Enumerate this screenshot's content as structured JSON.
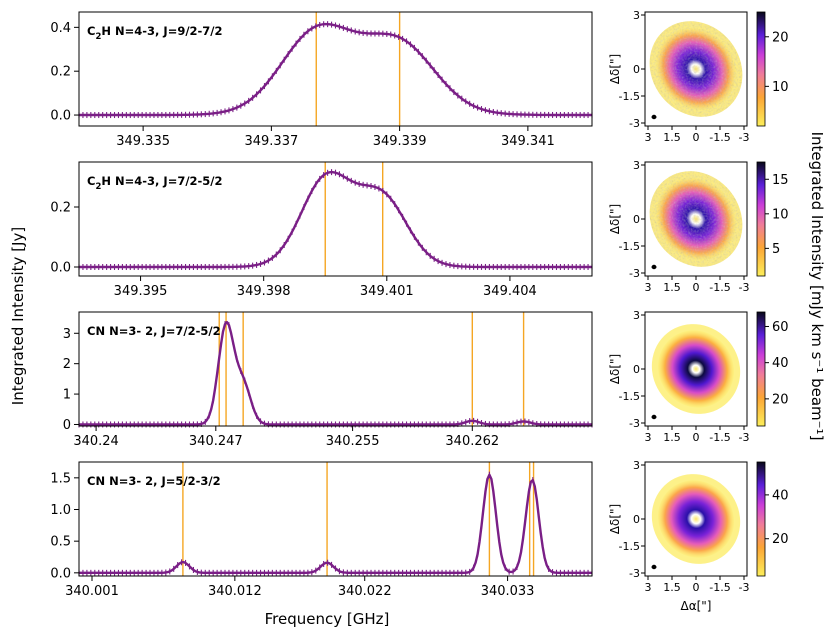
{
  "figure": {
    "shared_ylabel": "Integrated Intensity [Jy]",
    "shared_xlabel": "Frequency [GHz]",
    "colorbar_label": "Integrated Intensity [mJy km s⁻¹ beam⁻¹]",
    "map_xlabel": "Δα[\"]",
    "map_ylabel": "Δδ[\"]",
    "map_ticks": [
      "3",
      "1.5",
      "0",
      "-1.5",
      "-3"
    ],
    "colors": {
      "spectrum": "#7a1f86",
      "line_marker": "#f5a623",
      "colormap": "plasma_r"
    }
  },
  "chart_data": [
    {
      "type": "line",
      "title_parts": [
        "C",
        "2",
        "H N=4-3, J=9/2-7/2"
      ],
      "xlim": [
        349.334,
        349.342
      ],
      "ylim": [
        -0.05,
        0.47
      ],
      "xticks": [
        349.335,
        349.337,
        349.339,
        349.341
      ],
      "xtick_labels": [
        "349.335",
        "349.337",
        "349.339",
        "349.341"
      ],
      "yticks": [
        0.0,
        0.2,
        0.4
      ],
      "ytick_labels": [
        "0.0",
        "0.2",
        "0.4"
      ],
      "line_markers": [
        349.3377,
        349.339
      ],
      "peaks": [
        {
          "c": 349.3377,
          "a": 0.33,
          "w": 0.00055
        },
        {
          "c": 349.339,
          "a": 0.27,
          "w": 0.00055
        }
      ],
      "broad": {
        "c": 349.3384,
        "a": 0.08,
        "w": 0.0009
      }
    },
    {
      "type": "line",
      "title_parts": [
        "C",
        "2",
        "H N=4-3, J=7/2-5/2"
      ],
      "xlim": [
        349.3935,
        349.406
      ],
      "ylim": [
        -0.03,
        0.35
      ],
      "xticks": [
        349.395,
        349.398,
        349.401,
        349.404
      ],
      "xtick_labels": [
        "349.395",
        "349.398",
        "349.401",
        "349.404"
      ],
      "yticks": [
        0.0,
        0.2
      ],
      "ytick_labels": [
        "0.0",
        "0.2"
      ],
      "line_markers": [
        349.3995,
        349.4009
      ],
      "peaks": [
        {
          "c": 349.3995,
          "a": 0.26,
          "w": 0.0006
        },
        {
          "c": 349.4009,
          "a": 0.2,
          "w": 0.0006
        }
      ],
      "broad": {
        "c": 349.4002,
        "a": 0.05,
        "w": 0.0009
      }
    },
    {
      "type": "line",
      "title_parts": [
        "CN N=3- 2, J=7/2-5/2"
      ],
      "xlim": [
        340.239,
        340.269
      ],
      "ylim": [
        -0.05,
        3.7
      ],
      "xticks": [
        340.24,
        340.247,
        340.255,
        340.262
      ],
      "xtick_labels": [
        "340.24",
        "340.247",
        "340.255",
        "340.262"
      ],
      "yticks": [
        0,
        1,
        2,
        3
      ],
      "ytick_labels": [
        "0",
        "1",
        "2",
        "3"
      ],
      "line_markers": [
        340.2472,
        340.2476,
        340.2486,
        340.262,
        340.265
      ],
      "peaks": [
        {
          "c": 340.2476,
          "a": 3.25,
          "w": 0.00045
        },
        {
          "c": 340.2486,
          "a": 1.3,
          "w": 0.00045
        },
        {
          "c": 340.262,
          "a": 0.12,
          "w": 0.0004
        },
        {
          "c": 340.265,
          "a": 0.1,
          "w": 0.0004
        }
      ],
      "broad": null
    },
    {
      "type": "line",
      "title_parts": [
        "CN N=3- 2, J=5/2-3/2"
      ],
      "xlim": [
        340.0,
        340.0395
      ],
      "ylim": [
        -0.05,
        1.75
      ],
      "xticks": [
        340.001,
        340.012,
        340.022,
        340.033
      ],
      "xtick_labels": [
        "340.001",
        "340.012",
        "340.022",
        "340.033"
      ],
      "yticks": [
        0.0,
        0.5,
        1.0,
        1.5
      ],
      "ytick_labels": [
        "0.0",
        "0.5",
        "1.0",
        "1.5"
      ],
      "line_markers": [
        340.008,
        340.0191,
        340.0316,
        340.0347,
        340.035
      ],
      "peaks": [
        {
          "c": 340.008,
          "a": 0.17,
          "w": 0.0005
        },
        {
          "c": 340.0191,
          "a": 0.16,
          "w": 0.0005
        },
        {
          "c": 340.0316,
          "a": 1.55,
          "w": 0.0005
        },
        {
          "c": 340.0349,
          "a": 1.47,
          "w": 0.0005
        }
      ],
      "broad": null
    },
    {
      "type": "heatmap",
      "colorbar_ticks": [
        10,
        20
      ],
      "colorbar_range": [
        2,
        25
      ],
      "peak_value": 24,
      "morphology": "ring",
      "xlim": [
        3,
        -3
      ],
      "ylim": [
        -3,
        3
      ]
    },
    {
      "type": "heatmap",
      "colorbar_ticks": [
        5,
        10,
        15
      ],
      "colorbar_range": [
        1,
        17.5
      ],
      "peak_value": 17,
      "morphology": "ring",
      "xlim": [
        3,
        -3
      ],
      "ylim": [
        -3,
        3
      ]
    },
    {
      "type": "heatmap",
      "colorbar_ticks": [
        20,
        40,
        60
      ],
      "colorbar_range": [
        5,
        68
      ],
      "peak_value": 66,
      "morphology": "ring",
      "xlim": [
        3,
        -3
      ],
      "ylim": [
        -3,
        3
      ]
    },
    {
      "type": "heatmap",
      "colorbar_ticks": [
        20,
        40
      ],
      "colorbar_range": [
        3,
        55
      ],
      "peak_value": 53,
      "morphology": "ring",
      "xlim": [
        3,
        -3
      ],
      "ylim": [
        -3,
        3
      ]
    }
  ]
}
